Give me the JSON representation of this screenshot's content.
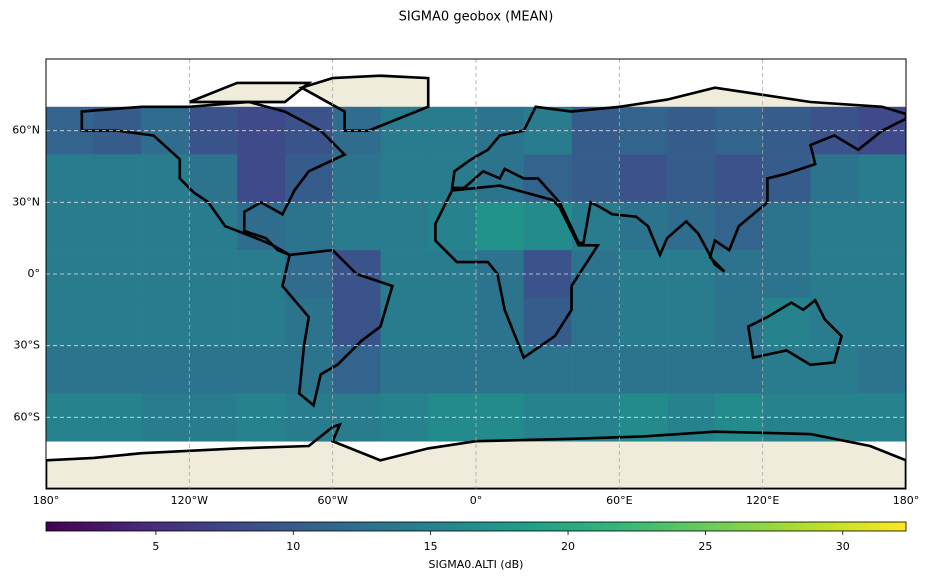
{
  "chart_data": {
    "type": "heatmap",
    "title": "SIGMA0 geobox (MEAN)",
    "colorbar_label": "SIGMA0.ALTI (dB)",
    "colormap": "viridis",
    "xlim": [
      -180,
      180
    ],
    "ylim": [
      -90,
      90
    ],
    "xticks": [
      {
        "value": -180,
        "label": "180°"
      },
      {
        "value": -120,
        "label": "120°W"
      },
      {
        "value": -60,
        "label": "60°W"
      },
      {
        "value": 0,
        "label": "0°"
      },
      {
        "value": 60,
        "label": "60°E"
      },
      {
        "value": 120,
        "label": "120°E"
      },
      {
        "value": 180,
        "label": "180°"
      }
    ],
    "yticks": [
      {
        "value": 60,
        "label": "60°N"
      },
      {
        "value": 30,
        "label": "30°N"
      },
      {
        "value": 0,
        "label": "0°"
      },
      {
        "value": -30,
        "label": "30°S"
      },
      {
        "value": -60,
        "label": "60°S"
      }
    ],
    "grid": true,
    "x": [
      -170,
      -150,
      -130,
      -110,
      -90,
      -70,
      -50,
      -30,
      -10,
      10,
      30,
      50,
      70,
      90,
      110,
      130,
      150,
      170
    ],
    "y": [
      60,
      40,
      20,
      0,
      -20,
      -40,
      -60
    ],
    "values": [
      [
        11,
        10,
        12,
        9,
        8,
        9,
        12,
        14,
        14,
        13,
        14,
        10,
        11,
        10,
        11,
        10,
        9,
        8
      ],
      [
        14,
        14,
        14,
        13,
        8,
        10,
        13,
        14,
        14,
        13,
        11,
        10,
        9,
        10,
        9,
        10,
        13,
        14
      ],
      [
        14,
        14,
        14,
        14,
        12,
        13,
        14,
        14,
        15,
        17,
        16,
        14,
        13,
        12,
        11,
        13,
        14,
        14
      ],
      [
        14,
        14,
        14,
        14,
        14,
        12,
        9,
        14,
        14,
        13,
        9,
        13,
        14,
        14,
        13,
        13,
        14,
        14
      ],
      [
        14,
        14,
        14,
        14,
        14,
        13,
        9,
        14,
        14,
        13,
        10,
        13,
        14,
        14,
        13,
        15,
        14,
        14
      ],
      [
        13,
        13,
        13,
        13,
        13,
        13,
        11,
        13,
        13,
        13,
        13,
        13,
        13,
        13,
        13,
        14,
        14,
        13
      ],
      [
        15,
        15,
        14,
        14,
        15,
        14,
        14,
        15,
        16,
        16,
        15,
        15,
        16,
        15,
        16,
        15,
        15,
        15
      ]
    ],
    "clim": [
      1,
      32.3
    ],
    "cticks": [
      5,
      10,
      15,
      20,
      25,
      30
    ]
  }
}
